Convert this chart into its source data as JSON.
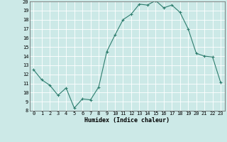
{
  "x": [
    0,
    1,
    2,
    3,
    4,
    5,
    6,
    7,
    8,
    9,
    10,
    11,
    12,
    13,
    14,
    15,
    16,
    17,
    18,
    19,
    20,
    21,
    22,
    23
  ],
  "y": [
    12.5,
    11.4,
    10.8,
    9.7,
    10.5,
    8.3,
    9.3,
    9.2,
    10.6,
    14.5,
    16.3,
    18.0,
    18.6,
    19.7,
    19.6,
    20.1,
    19.3,
    19.6,
    18.8,
    17.0,
    14.3,
    14.0,
    13.9,
    11.1
  ],
  "xlabel": "Humidex (Indice chaleur)",
  "ylim": [
    8,
    20
  ],
  "xlim_min": -0.5,
  "xlim_max": 23.5,
  "yticks": [
    8,
    9,
    10,
    11,
    12,
    13,
    14,
    15,
    16,
    17,
    18,
    19,
    20
  ],
  "xticks": [
    0,
    1,
    2,
    3,
    4,
    5,
    6,
    7,
    8,
    9,
    10,
    11,
    12,
    13,
    14,
    15,
    16,
    17,
    18,
    19,
    20,
    21,
    22,
    23
  ],
  "line_color": "#2e7d6e",
  "bg_color": "#cce9e7",
  "grid_color": "#ffffff",
  "tick_fontsize": 5,
  "xlabel_fontsize": 6,
  "figwidth": 3.2,
  "figheight": 2.0,
  "dpi": 100
}
